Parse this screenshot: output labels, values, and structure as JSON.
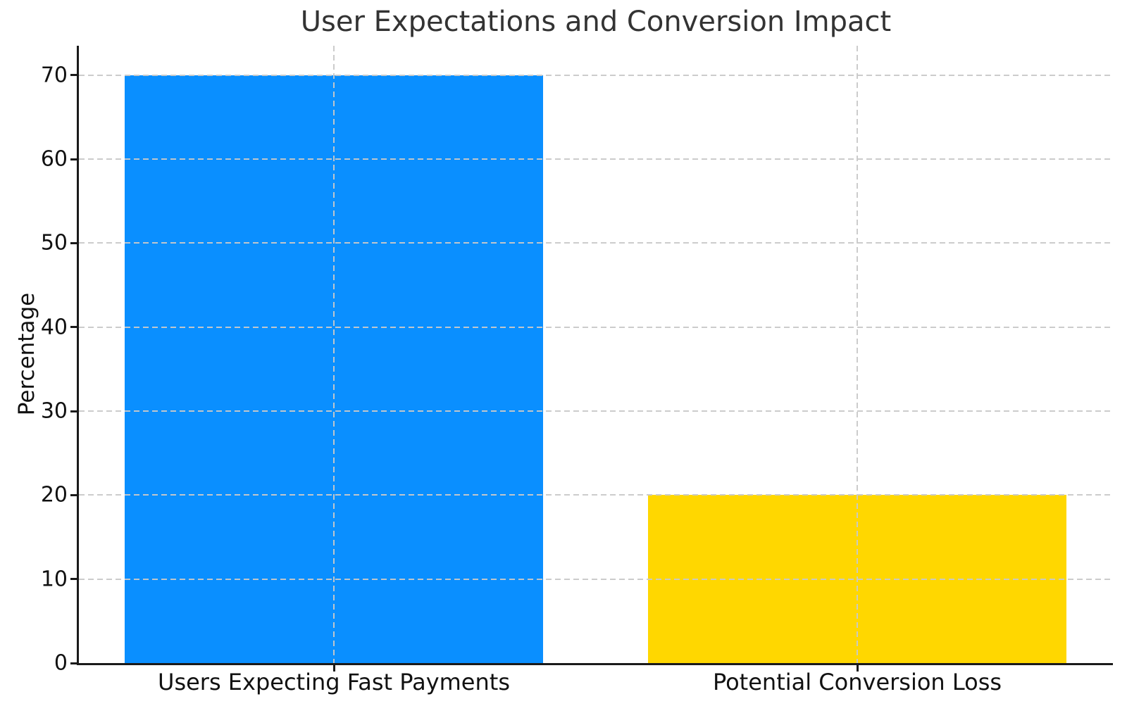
{
  "chart_data": {
    "type": "bar",
    "title": "User Expectations and Conversion Impact",
    "xlabel": "",
    "ylabel": "Percentage",
    "categories": [
      "Users Expecting Fast Payments",
      "Potential Conversion Loss"
    ],
    "values": [
      70,
      20
    ],
    "bar_colors": [
      "#0A8FFF",
      "#FFD700"
    ],
    "yticks": [
      0,
      10,
      20,
      30,
      40,
      50,
      60,
      70
    ],
    "ylim": [
      0,
      73.5
    ],
    "grid": "dashed",
    "grid_color": "#c9c9c9",
    "legend_position": "none",
    "spine_color": "#1a1a1a",
    "title_color": "#333333"
  }
}
